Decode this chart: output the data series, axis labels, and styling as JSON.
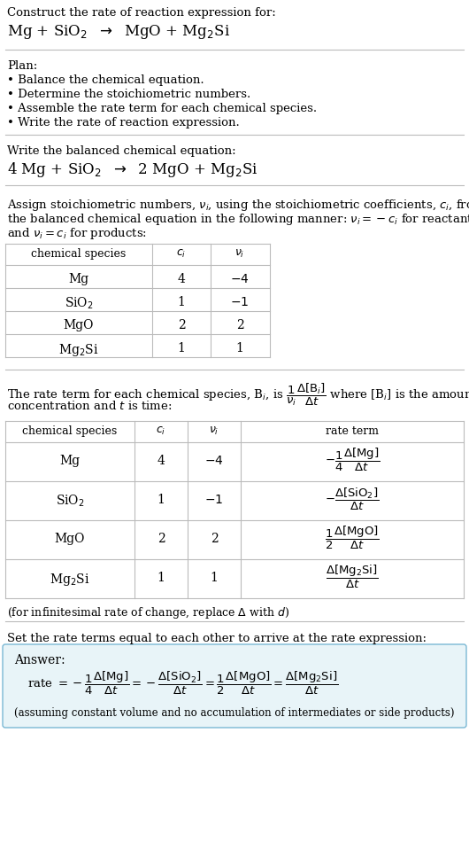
{
  "bg_color": "#ffffff",
  "text_color": "#000000",
  "line_color": "#bbbbbb",
  "answer_box_color": "#e8f4f8",
  "answer_box_border": "#7ab8d4",
  "sections": {
    "s1_line1": "Construct the rate of reaction expression for:",
    "s1_line2": "Mg + SiO$_2$  $\\rightarrow$  MgO + Mg$_2$Si",
    "s2_head": "Plan:",
    "s2_bullets": [
      "Balance the chemical equation.",
      "Determine the stoichiometric numbers.",
      "Assemble the rate term for each chemical species.",
      "Write the rate of reaction expression."
    ],
    "s3_head": "Write the balanced chemical equation:",
    "s3_eq": "4 Mg + SiO$_2$  $\\rightarrow$  2 MgO + Mg$_2$Si",
    "s4_para": [
      "Assign stoichiometric numbers, $\\nu_i$, using the stoichiometric coefficients, $c_i$, from",
      "the balanced chemical equation in the following manner: $\\nu_i = -c_i$ for reactants",
      "and $\\nu_i = c_i$ for products:"
    ],
    "t1_headers": [
      "chemical species",
      "$c_i$",
      "$\\nu_i$"
    ],
    "t1_rows": [
      [
        "Mg",
        "4",
        "$-4$"
      ],
      [
        "SiO$_2$",
        "1",
        "$-1$"
      ],
      [
        "MgO",
        "2",
        "2"
      ],
      [
        "Mg$_2$Si",
        "1",
        "1"
      ]
    ],
    "s5_para": [
      "The rate term for each chemical species, B$_i$, is $\\dfrac{1}{\\nu_i}\\dfrac{\\Delta[\\mathrm{B}_i]}{\\Delta t}$ where [B$_i$] is the amount",
      "concentration and $t$ is time:"
    ],
    "t2_headers": [
      "chemical species",
      "$c_i$",
      "$\\nu_i$",
      "rate term"
    ],
    "t2_rows": [
      [
        "Mg",
        "4",
        "$-4$"
      ],
      [
        "SiO$_2$",
        "1",
        "$-1$"
      ],
      [
        "MgO",
        "2",
        "2"
      ],
      [
        "Mg$_2$Si",
        "1",
        "1"
      ]
    ],
    "t2_rate_terms": [
      "$-\\dfrac{1}{4}\\dfrac{\\Delta[\\mathrm{Mg}]}{\\Delta t}$",
      "$-\\dfrac{\\Delta[\\mathrm{SiO_2}]}{\\Delta t}$",
      "$\\dfrac{1}{2}\\dfrac{\\Delta[\\mathrm{MgO}]}{\\Delta t}$",
      "$\\dfrac{\\Delta[\\mathrm{Mg_2Si}]}{\\Delta t}$"
    ],
    "note": "(for infinitesimal rate of change, replace $\\Delta$ with $d$)",
    "s6_head": "Set the rate terms equal to each other to arrive at the rate expression:",
    "answer_label": "Answer:",
    "answer_rate": "rate $= -\\dfrac{1}{4}\\dfrac{\\Delta[\\mathrm{Mg}]}{\\Delta t} = -\\dfrac{\\Delta[\\mathrm{SiO_2}]}{\\Delta t} = \\dfrac{1}{2}\\dfrac{\\Delta[\\mathrm{MgO}]}{\\Delta t} = \\dfrac{\\Delta[\\mathrm{Mg_2Si}]}{\\Delta t}$",
    "answer_note": "(assuming constant volume and no accumulation of intermediates or side products)"
  }
}
